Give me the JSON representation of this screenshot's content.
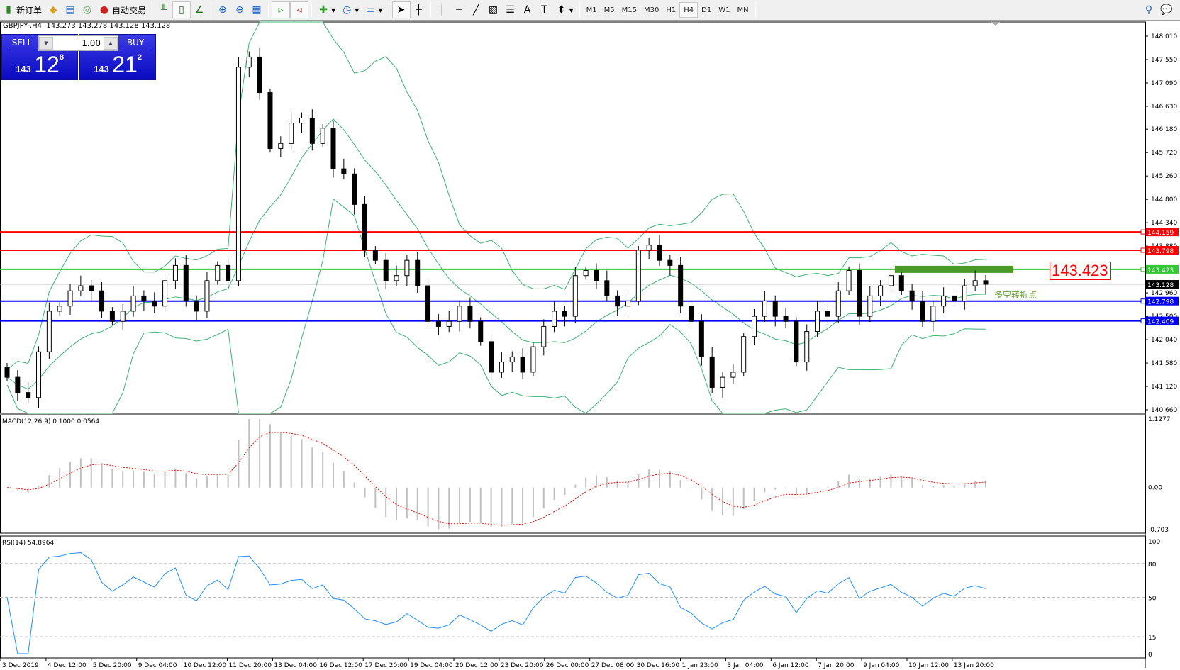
{
  "toolbar": {
    "new_order": "新订单",
    "auto_trading": "自动交易",
    "timeframes": [
      "M1",
      "M5",
      "M15",
      "M30",
      "H1",
      "H4",
      "D1",
      "W1",
      "MN"
    ],
    "active_timeframe": "H4"
  },
  "chart": {
    "symbol_line": "GBPJPY-,H4  143.273 143.278 143.128 143.128",
    "trade_panel": {
      "sell_label": "SELL",
      "buy_label": "BUY",
      "lot": "1.00",
      "sell_big": "143",
      "sell_main": "12",
      "sell_sup": "8",
      "buy_big": "143",
      "buy_main": "21",
      "buy_sup": "2"
    },
    "price_ticks": [
      "148.010",
      "147.550",
      "147.090",
      "146.630",
      "146.180",
      "145.720",
      "145.260",
      "144.800",
      "144.340",
      "143.880",
      "142.960",
      "142.500",
      "142.040",
      "141.580",
      "141.120",
      "140.660"
    ],
    "price_range": [
      140.66,
      148.01
    ],
    "hlines": [
      {
        "price": 144.159,
        "label": "144.159",
        "color": "#ff0000"
      },
      {
        "price": 143.798,
        "label": "143.798",
        "color": "#ff0000"
      },
      {
        "price": 143.423,
        "label": "143.423",
        "color": "#32c832"
      },
      {
        "price": 142.798,
        "label": "142.798",
        "color": "#0000ff"
      },
      {
        "price": 142.409,
        "label": "142.409",
        "color": "#0000ff"
      }
    ],
    "bid": {
      "price": 143.128,
      "label": "143.128"
    },
    "big_price_label": "143.423",
    "annotation": "多空转折点",
    "closes": [
      141.3,
      141.0,
      140.9,
      141.8,
      142.6,
      142.7,
      143.0,
      143.1,
      143.0,
      142.6,
      142.4,
      142.6,
      142.9,
      142.8,
      142.7,
      143.2,
      143.5,
      142.8,
      142.6,
      143.2,
      143.5,
      143.2,
      147.4,
      147.6,
      146.9,
      145.8,
      145.9,
      146.3,
      146.4,
      145.9,
      146.2,
      145.4,
      145.3,
      144.7,
      143.8,
      143.6,
      143.2,
      143.3,
      143.6,
      143.1,
      142.4,
      142.3,
      142.4,
      142.7,
      142.4,
      142.0,
      141.4,
      141.6,
      141.7,
      141.4,
      141.9,
      142.3,
      142.6,
      142.5,
      143.3,
      143.4,
      143.2,
      142.9,
      142.7,
      142.8,
      143.8,
      143.9,
      143.6,
      143.5,
      142.7,
      142.4,
      141.7,
      141.1,
      141.3,
      141.4,
      142.1,
      142.5,
      142.8,
      142.5,
      142.4,
      141.6,
      142.2,
      142.6,
      142.5,
      143.0,
      143.4,
      142.5,
      142.9,
      143.1,
      143.3,
      143.0,
      142.8,
      142.4,
      142.7,
      142.9,
      142.8,
      143.1,
      143.2,
      143.128
    ],
    "bollinger_color": "#3cb371"
  },
  "macd": {
    "label": "MACD(12,26,9) 0.1000 0.0564",
    "ticks": [
      "1.1277",
      "0.00",
      "-0.703"
    ],
    "range": [
      -0.703,
      1.1277
    ],
    "hist_color": "#c0c0c0",
    "signal_color": "#ff0000"
  },
  "rsi": {
    "label": "RSI(14) 54.8964",
    "ticks": [
      "100",
      "80",
      "50",
      "15",
      "0"
    ],
    "levels": [
      80,
      50,
      15
    ],
    "line_color": "#1e90ff"
  },
  "time_labels": [
    "3 Dec 2019",
    "4 Dec 12:00",
    "5 Dec 20:00",
    "9 Dec 04:00",
    "10 Dec 12:00",
    "11 Dec 20:00",
    "13 Dec 04:00",
    "16 Dec 12:00",
    "17 Dec 20:00",
    "19 Dec 04:00",
    "20 Dec 12:00",
    "23 Dec 20:00",
    "26 Dec 00:00",
    "27 Dec 08:00",
    "30 Dec 16:00",
    "1 Jan 23:00",
    "3 Jan 04:00",
    "6 Jan 12:00",
    "7 Jan 20:00",
    "9 Jan 04:00",
    "10 Jan 12:00",
    "13 Jan 20:00"
  ]
}
